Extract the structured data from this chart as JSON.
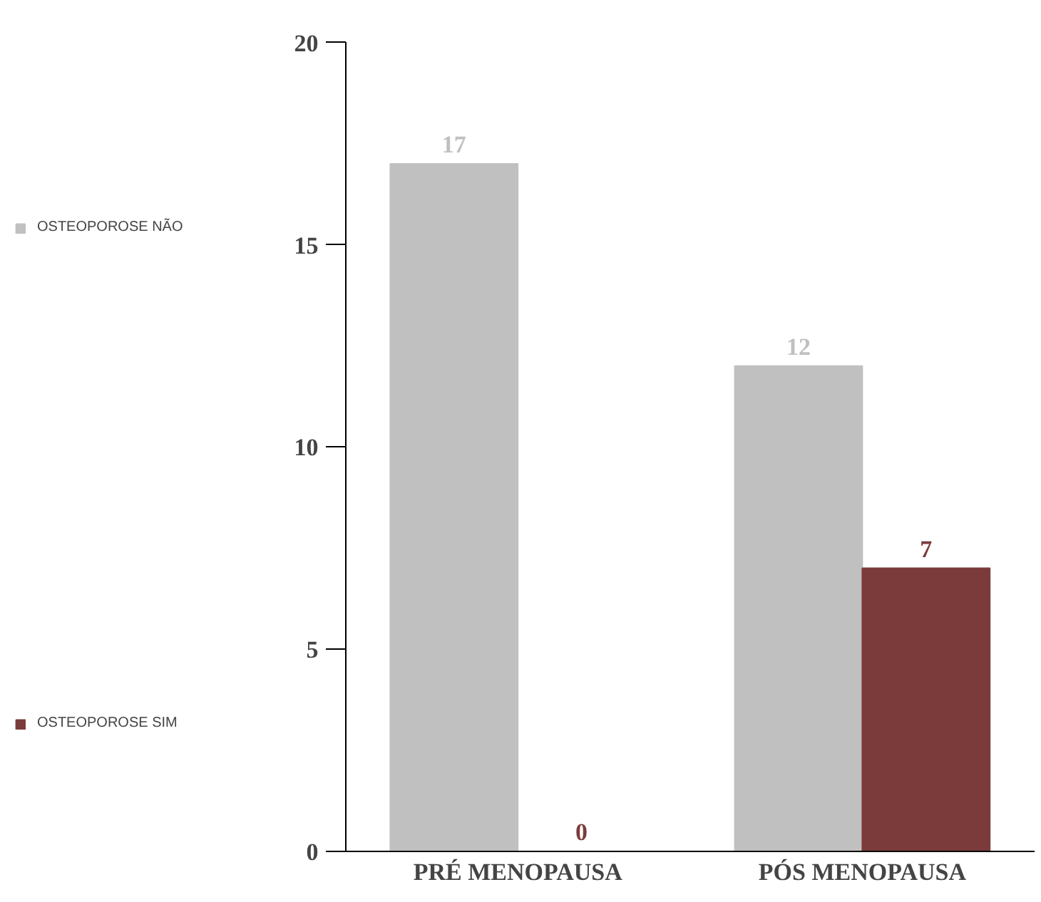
{
  "chart_data": {
    "type": "bar",
    "categories": [
      "PRÉ MENOPAUSA",
      "PÓS MENOPAUSA"
    ],
    "series": [
      {
        "name": "OSTEOPOROSE NÃO",
        "color": "#c0c0c0",
        "values": [
          17,
          12
        ]
      },
      {
        "name": "OSTEOPOROSE SIM",
        "color": "#7b3b3b",
        "values": [
          0,
          7
        ]
      }
    ],
    "ylim": [
      0,
      20
    ],
    "yticks": [
      0,
      5,
      10,
      15,
      20
    ],
    "grid": false,
    "legend": "left",
    "data_labels": true
  }
}
